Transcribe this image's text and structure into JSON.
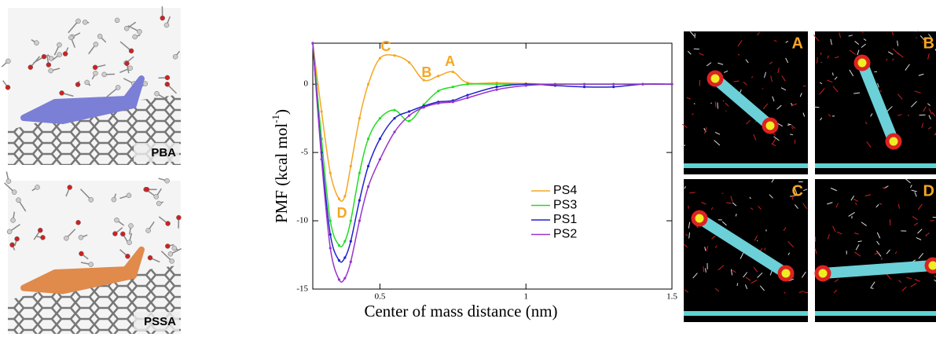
{
  "chart_data": {
    "type": "line",
    "xlabel": "Center  of  mass distance (nm)",
    "ylabel": {
      "text": "PMF (kcal mol",
      "sup": "-1",
      "end": ")"
    },
    "x": [
      0.27,
      0.3,
      0.33,
      0.36,
      0.38,
      0.4,
      0.43,
      0.46,
      0.5,
      0.55,
      0.6,
      0.65,
      0.7,
      0.75,
      0.8,
      0.9,
      1.0,
      1.1,
      1.2,
      1.3,
      1.4,
      1.5
    ],
    "series": [
      {
        "name": "PS4",
        "color": "#f5a623",
        "values": [
          3,
          -2,
          -6.5,
          -8.4,
          -8.2,
          -6,
          -2.5,
          0,
          1.9,
          2.1,
          1.6,
          0.3,
          0.6,
          0.9,
          0.1,
          0.1,
          0.05,
          0,
          0,
          0,
          0,
          0
        ]
      },
      {
        "name": "PS3",
        "color": "#22dd22",
        "values": [
          3,
          -4,
          -10,
          -11.8,
          -11.5,
          -10,
          -6.5,
          -4,
          -2.5,
          -1.9,
          -2.7,
          -1.5,
          -0.5,
          -0.2,
          0,
          0,
          0,
          0,
          0,
          0,
          0,
          0
        ]
      },
      {
        "name": "PS1",
        "color": "#2222cc",
        "values": [
          3,
          -5,
          -11,
          -12.9,
          -12.7,
          -11.5,
          -8.5,
          -6,
          -4,
          -2.5,
          -2,
          -1.6,
          -1.3,
          -1.2,
          -0.8,
          -0.2,
          0,
          -0.1,
          -0.2,
          -0.2,
          0,
          0
        ]
      },
      {
        "name": "PS2",
        "color": "#9933cc",
        "values": [
          3,
          -5.5,
          -12,
          -14.3,
          -14.2,
          -13,
          -10,
          -7.5,
          -5.5,
          -3.5,
          -2.3,
          -1.7,
          -1.4,
          -1.3,
          -1,
          -0.4,
          -0.1,
          0,
          0,
          0,
          0,
          0
        ]
      }
    ],
    "annotations": [
      {
        "text": "C",
        "x": 0.52,
        "y": 2.7
      },
      {
        "text": "B",
        "x": 0.66,
        "y": 0.8
      },
      {
        "text": "A",
        "x": 0.74,
        "y": 1.6
      },
      {
        "text": "D",
        "x": 0.37,
        "y": -9.5
      }
    ],
    "xlim": [
      0.27,
      1.5
    ],
    "ylim": [
      -15,
      3
    ],
    "xticks": [
      0.5,
      1,
      1.5
    ],
    "yticks": [
      0,
      -5,
      -10,
      -15
    ]
  },
  "panels": {
    "left": [
      "PBA",
      "PSSA"
    ],
    "right": [
      "A",
      "B",
      "C",
      "D"
    ]
  }
}
